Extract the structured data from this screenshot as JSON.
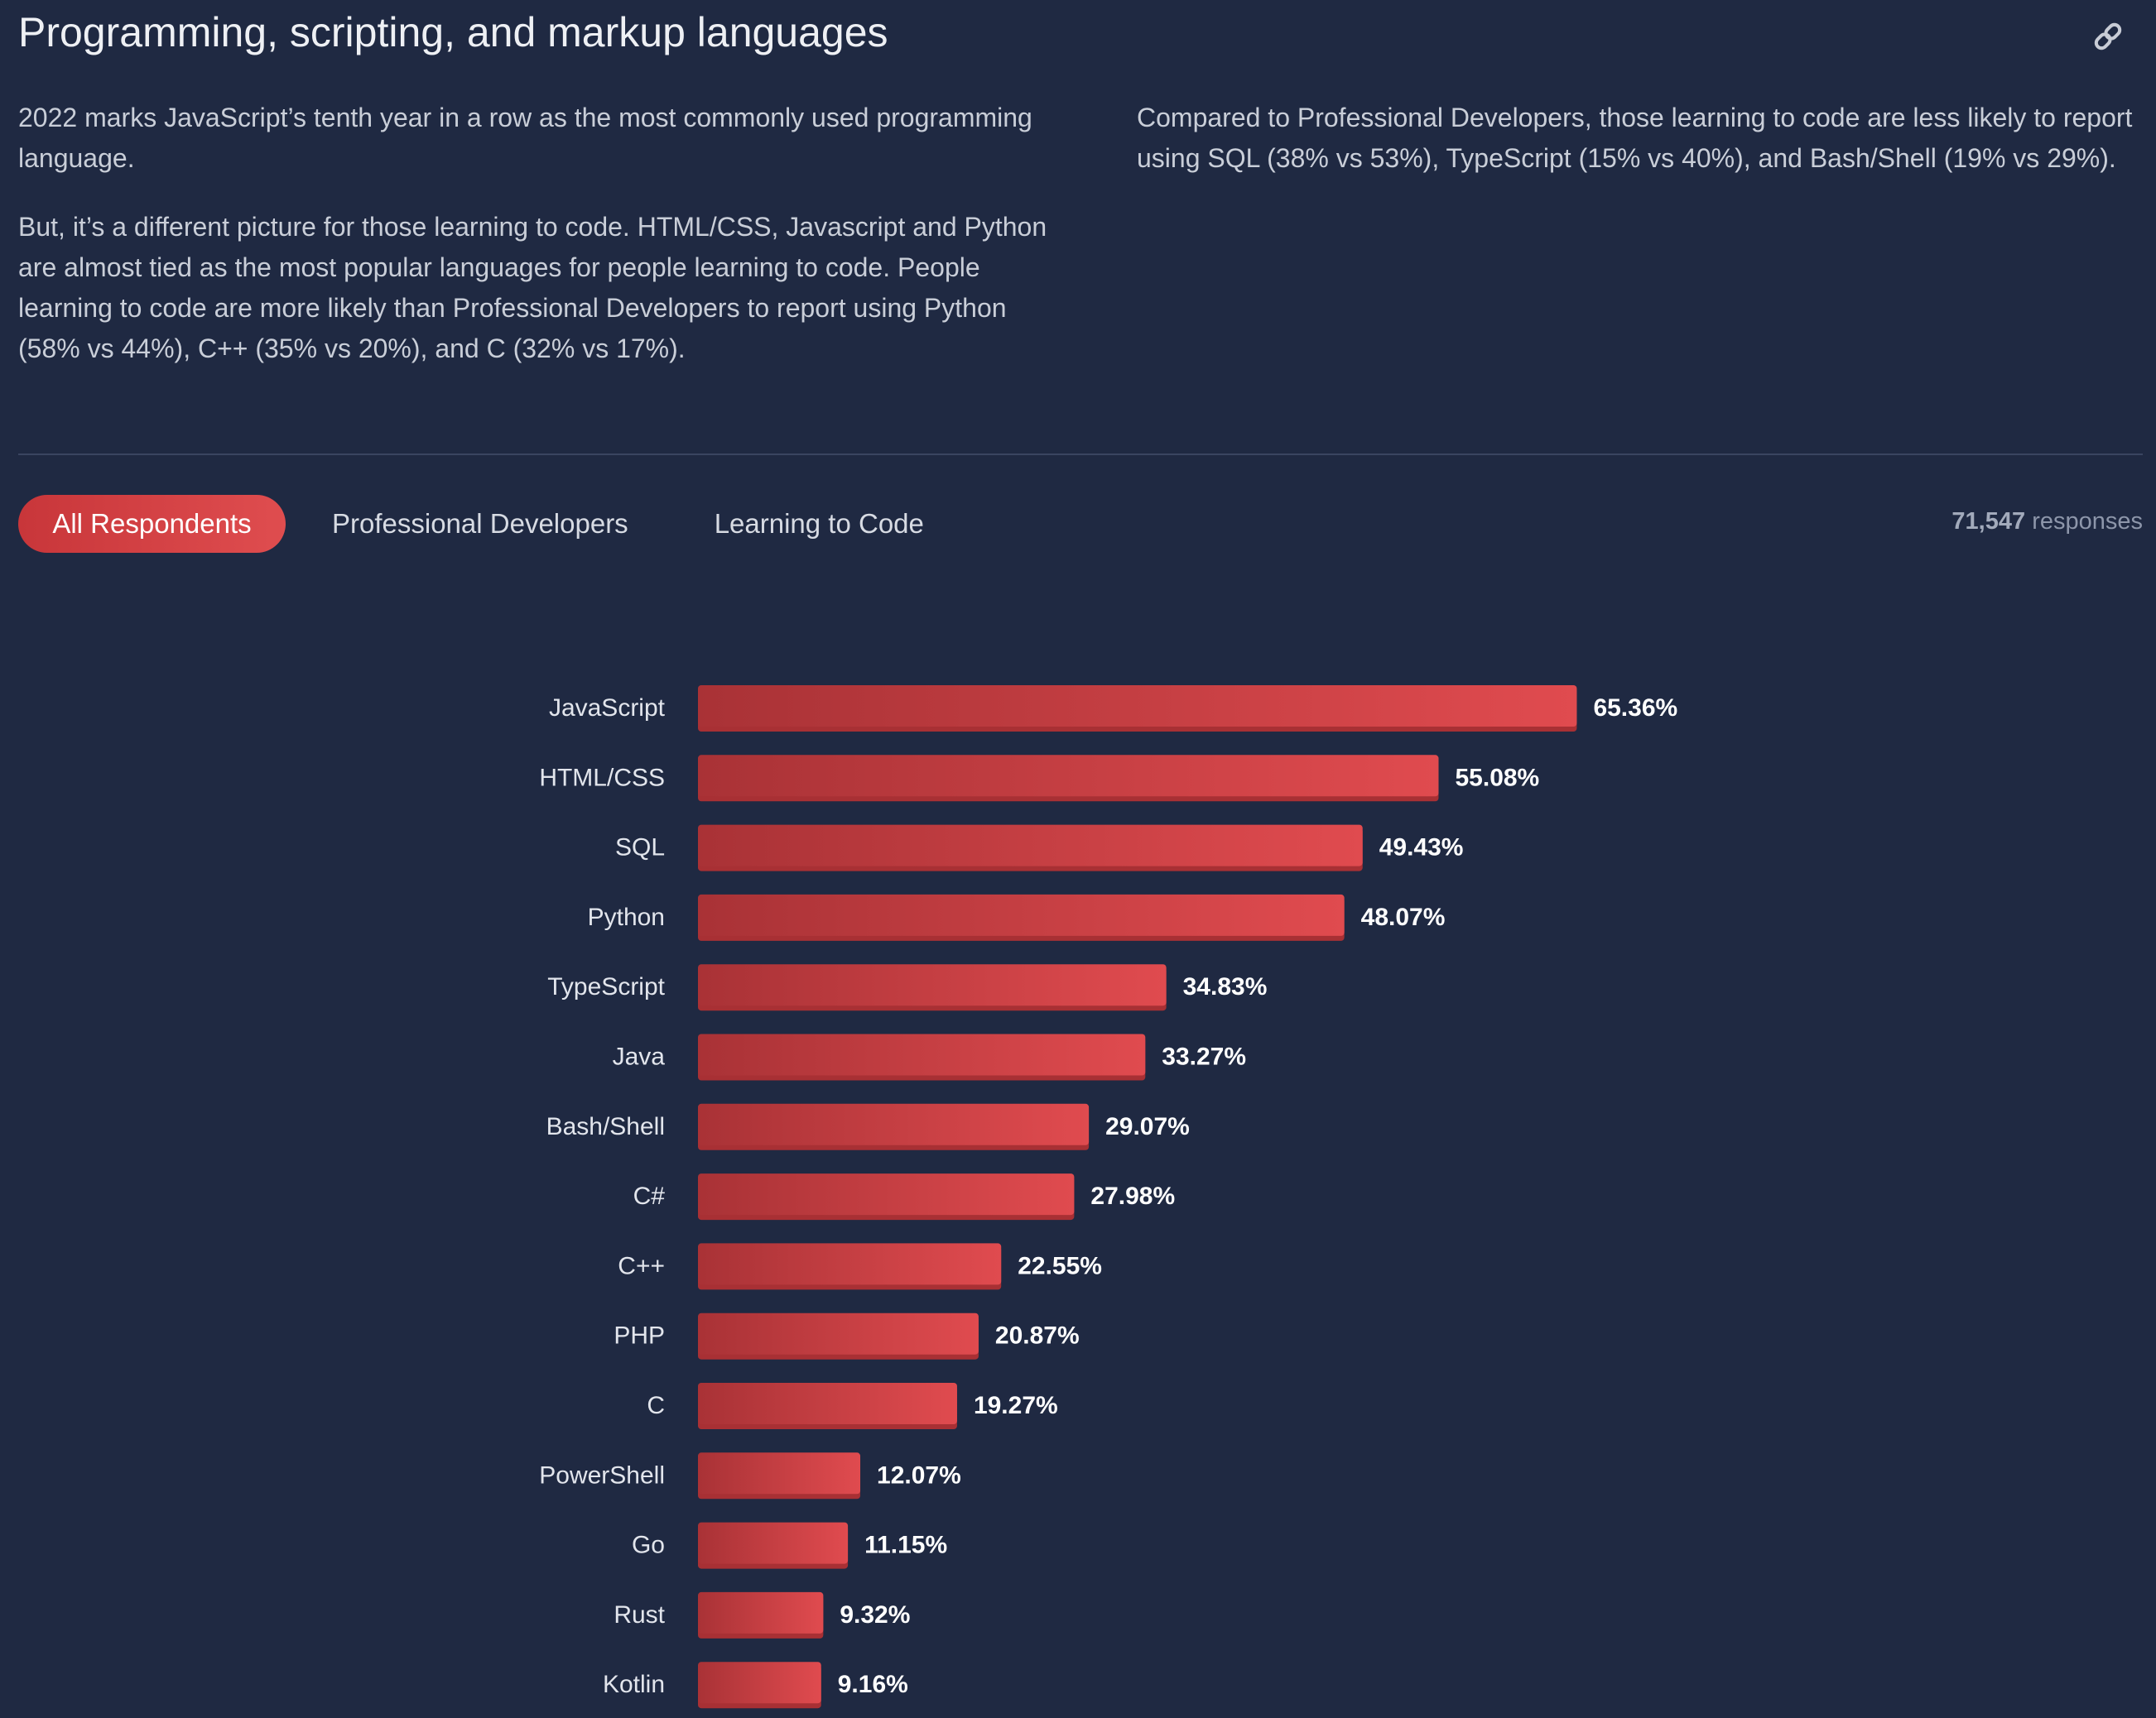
{
  "header": {
    "title": "Programming, scripting, and markup languages"
  },
  "intro": {
    "left": [
      "2022 marks JavaScript’s tenth year in a row as the most commonly used programming language.",
      "But, it’s a different picture for those learning to code. HTML/CSS, Javascript and Python are almost tied as the most popular languages for people learning to code. People learning to code are more likely than Professional Developers to report using Python (58% vs 44%), C++ (35% vs 20%), and C (32% vs 17%)."
    ],
    "right": [
      "Compared to Professional Developers, those learning to code are less likely to report using SQL (38% vs 53%), TypeScript (15% vs 40%), and Bash/Shell (19% vs 29%)."
    ]
  },
  "tabs": [
    "All Respondents",
    "Professional Developers",
    "Learning to Code"
  ],
  "active_tab": "All Respondents",
  "responses": {
    "count": "71,547",
    "label": "responses"
  },
  "colors": {
    "background": "#1f2942",
    "bar": "#d9444a",
    "bar_dark": "#a83034",
    "accent_tab": "#d33f42"
  },
  "icons": {
    "link": "link-icon"
  },
  "chart_data": {
    "type": "bar",
    "orientation": "horizontal",
    "categories": [
      "JavaScript",
      "HTML/CSS",
      "SQL",
      "Python",
      "TypeScript",
      "Java",
      "Bash/Shell",
      "C#",
      "C++",
      "PHP",
      "C",
      "PowerShell",
      "Go",
      "Rust",
      "Kotlin"
    ],
    "values": [
      65.36,
      55.08,
      49.43,
      48.07,
      34.83,
      33.27,
      29.07,
      27.98,
      22.55,
      20.87,
      19.27,
      12.07,
      11.15,
      9.32,
      9.16
    ],
    "value_labels": [
      "65.36%",
      "55.08%",
      "49.43%",
      "48.07%",
      "34.83%",
      "33.27%",
      "29.07%",
      "27.98%",
      "22.55%",
      "20.87%",
      "19.27%",
      "12.07%",
      "11.15%",
      "9.32%",
      "9.16%"
    ],
    "unit": "%",
    "grid": false
  }
}
